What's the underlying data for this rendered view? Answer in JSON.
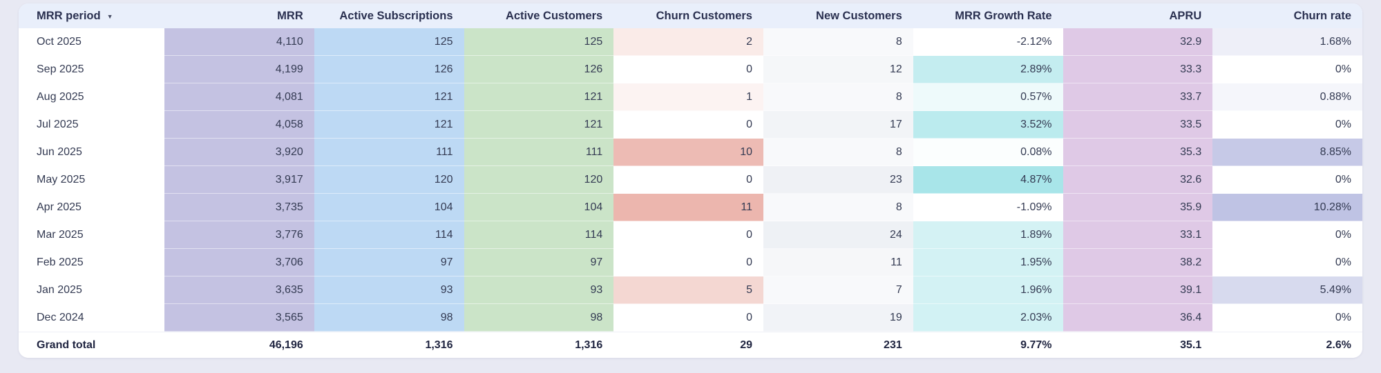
{
  "page": {
    "background_color": "#e8e9f3",
    "card_color": "#ffffff",
    "header_background_color": "#e9effb"
  },
  "table": {
    "sort_icon": "▼",
    "columns": [
      {
        "key": "period",
        "label": "MRR period",
        "align": "left",
        "sortable": true,
        "fill": {
          "type": "none"
        }
      },
      {
        "key": "mrr",
        "label": "MRR",
        "align": "right",
        "fill": {
          "type": "solid",
          "color": "#c4c2e2"
        }
      },
      {
        "key": "subs",
        "label": "Active Subscriptions",
        "align": "right",
        "fill": {
          "type": "solid",
          "color": "#bdd9f4"
        }
      },
      {
        "key": "customers",
        "label": "Active Customers",
        "align": "right",
        "fill": {
          "type": "solid",
          "color": "#cbe4c8"
        }
      },
      {
        "key": "churn",
        "label": "Churn Customers",
        "align": "right",
        "fill": {
          "type": "scale",
          "color": "#ecb6ae",
          "max": 11
        }
      },
      {
        "key": "new",
        "label": "New Customers",
        "align": "right",
        "fill": {
          "type": "scale",
          "color": "#eef1f5",
          "max": 24
        }
      },
      {
        "key": "growth",
        "label": "MRR Growth Rate",
        "align": "right",
        "fill": {
          "type": "scale",
          "color": "#a8e5e9",
          "max": 4.87,
          "positive_only": true
        }
      },
      {
        "key": "apru",
        "label": "APRU",
        "align": "right",
        "fill": {
          "type": "solid",
          "color": "#dfc9e6"
        }
      },
      {
        "key": "churn_rate",
        "label": "Churn rate",
        "align": "right",
        "fill": {
          "type": "scale",
          "color": "#bfc3e4",
          "max": 10.28
        }
      }
    ],
    "rows": [
      [
        "Oct 2025",
        "4,110",
        "125",
        "125",
        "2",
        "8",
        "-2.12%",
        "32.9",
        "1.68%"
      ],
      [
        "Sep 2025",
        "4,199",
        "126",
        "126",
        "0",
        "12",
        "2.89%",
        "33.3",
        "0%"
      ],
      [
        "Aug 2025",
        "4,081",
        "121",
        "121",
        "1",
        "8",
        "0.57%",
        "33.7",
        "0.88%"
      ],
      [
        "Jul 2025",
        "4,058",
        "121",
        "121",
        "0",
        "17",
        "3.52%",
        "33.5",
        "0%"
      ],
      [
        "Jun 2025",
        "3,920",
        "111",
        "111",
        "10",
        "8",
        "0.08%",
        "35.3",
        "8.85%"
      ],
      [
        "May 2025",
        "3,917",
        "120",
        "120",
        "0",
        "23",
        "4.87%",
        "32.6",
        "0%"
      ],
      [
        "Apr 2025",
        "3,735",
        "104",
        "104",
        "11",
        "8",
        "-1.09%",
        "35.9",
        "10.28%"
      ],
      [
        "Mar 2025",
        "3,776",
        "114",
        "114",
        "0",
        "24",
        "1.89%",
        "33.1",
        "0%"
      ],
      [
        "Feb 2025",
        "3,706",
        "97",
        "97",
        "0",
        "11",
        "1.95%",
        "38.2",
        "0%"
      ],
      [
        "Jan 2025",
        "3,635",
        "93",
        "93",
        "5",
        "7",
        "1.96%",
        "39.1",
        "5.49%"
      ],
      [
        "Dec 2024",
        "3,565",
        "98",
        "98",
        "0",
        "19",
        "2.03%",
        "36.4",
        "0%"
      ]
    ],
    "total_row": [
      "Grand total",
      "46,196",
      "1,316",
      "1,316",
      "29",
      "231",
      "9.77%",
      "35.1",
      "2.6%"
    ]
  }
}
